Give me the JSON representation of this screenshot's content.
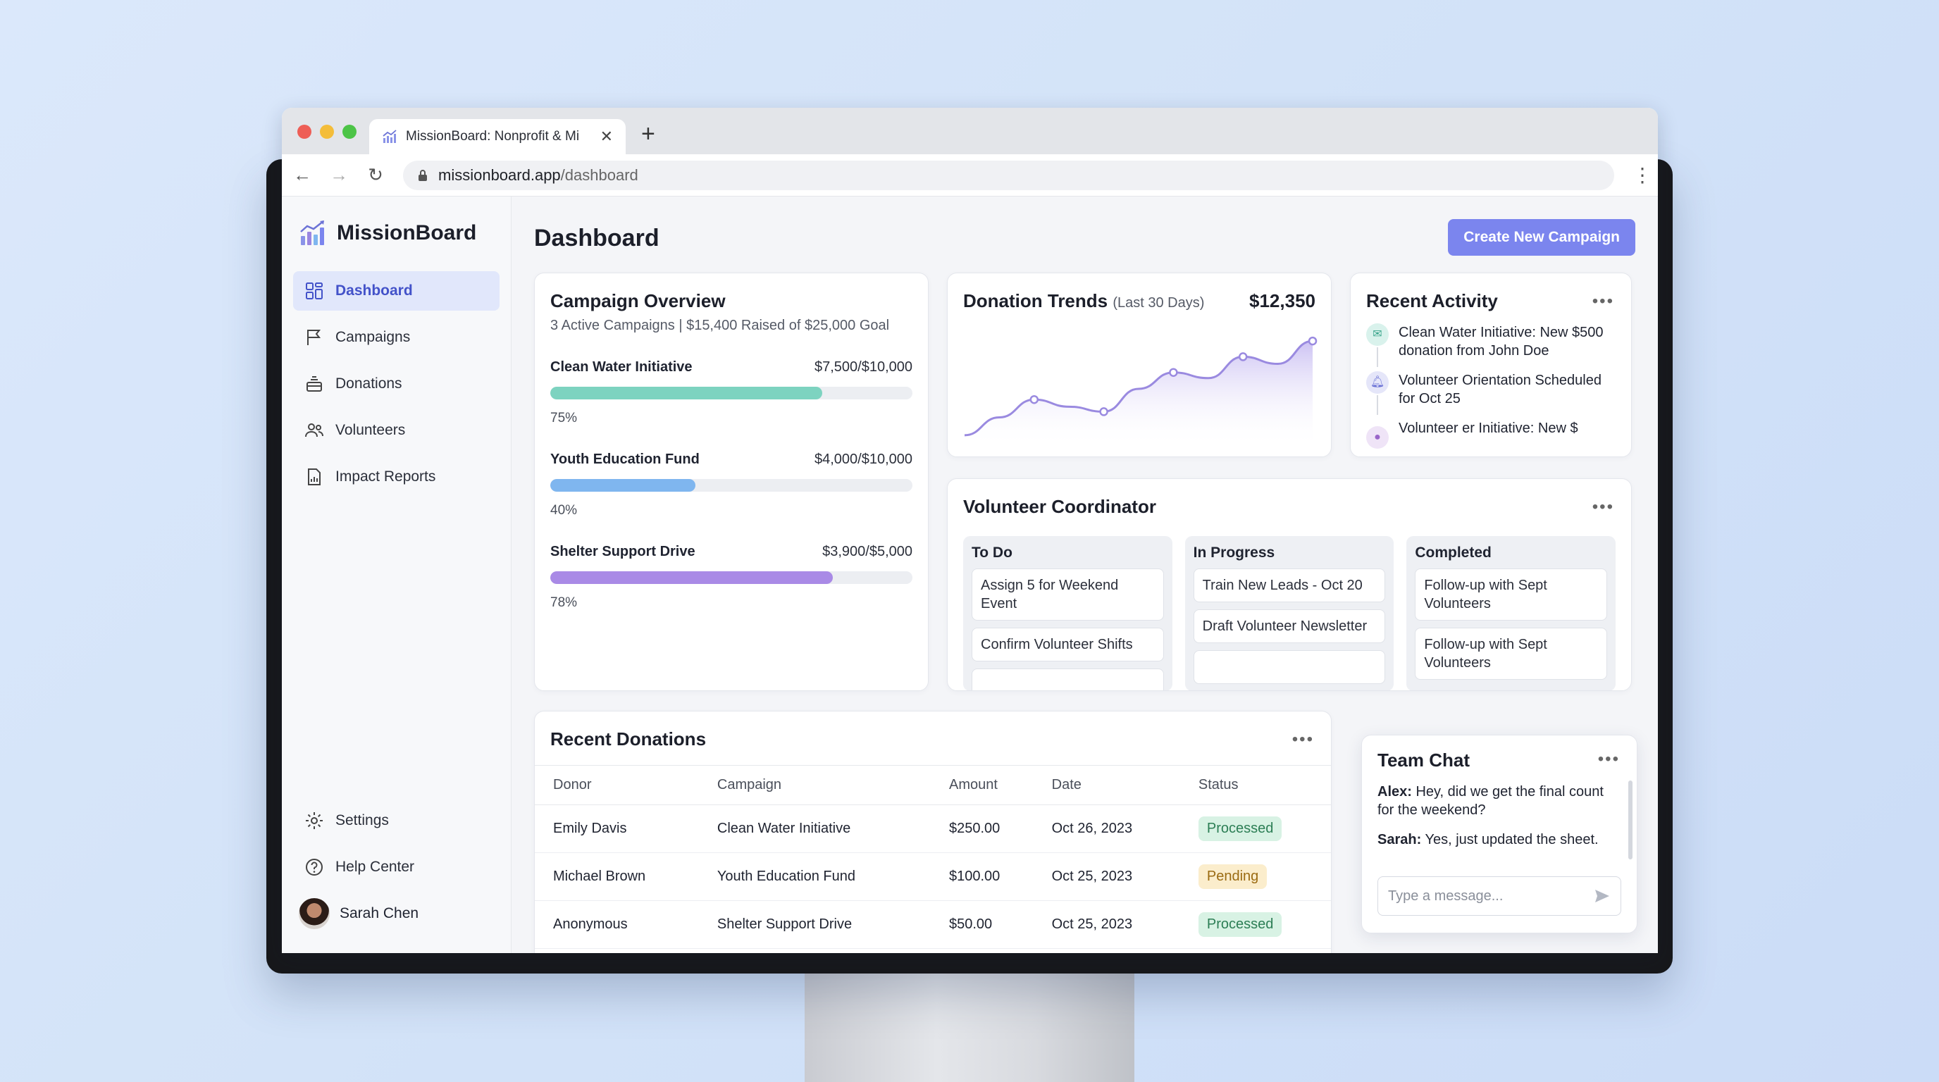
{
  "browser": {
    "tab_title": "MissionBoard: Nonprofit & Mi",
    "url_host": "missionboard.app",
    "url_path": "/dashboard"
  },
  "sidebar": {
    "brand": "MissionBoard",
    "items": [
      {
        "label": "Dashboard",
        "icon": "dashboard-icon",
        "active": true
      },
      {
        "label": "Campaigns",
        "icon": "flag-icon"
      },
      {
        "label": "Donations",
        "icon": "donation-box-icon"
      },
      {
        "label": "Volunteers",
        "icon": "users-icon"
      },
      {
        "label": "Impact Reports",
        "icon": "report-icon"
      }
    ],
    "bottom": [
      {
        "label": "Settings",
        "icon": "gear-icon"
      },
      {
        "label": "Help Center",
        "icon": "help-icon"
      }
    ],
    "user": "Sarah Chen"
  },
  "header": {
    "title": "Dashboard",
    "cta": "Create New Campaign"
  },
  "campaign_overview": {
    "title": "Campaign Overview",
    "subtitle": "3 Active Campaigns | $15,400 Raised of $25,000 Goal",
    "campaigns": [
      {
        "name": "Clean Water Initiative",
        "amount": "$7,500/$10,000",
        "pct_label": "75%",
        "progress": 75,
        "color": "#7dd3c0"
      },
      {
        "name": "Youth Education Fund",
        "amount": "$4,000/$10,000",
        "pct_label": "40%",
        "progress": 40,
        "color": "#7fb6ef"
      },
      {
        "name": "Shelter Support Drive",
        "amount": "$3,900/$5,000",
        "pct_label": "78%",
        "progress": 78,
        "color": "#a98ae6"
      }
    ]
  },
  "donation_trends": {
    "title": "Donation Trends",
    "subtitle": "(Last 30 Days)",
    "total": "$12,350"
  },
  "chart_data": {
    "type": "area",
    "x": [
      1,
      2,
      3,
      4,
      5,
      6,
      7,
      8,
      9,
      10,
      11
    ],
    "values": [
      0.1,
      0.35,
      0.6,
      0.5,
      0.43,
      0.75,
      0.98,
      0.9,
      1.2,
      1.1,
      1.42
    ],
    "markers": [
      2,
      4,
      6,
      8,
      10
    ],
    "color": "#9a8ae0",
    "title": "Donation Trends",
    "xlabel": "",
    "ylabel": ""
  },
  "recent_activity": {
    "title": "Recent Activity",
    "items": [
      {
        "text": "Clean Water Initiative: New $500 donation from John Doe",
        "icon": "mail-icon"
      },
      {
        "text": "Volunteer Orientation Scheduled for Oct 25",
        "icon": "bell-icon"
      },
      {
        "text": "Volunteer er Initiative: New $",
        "icon": "user-icon"
      }
    ]
  },
  "volunteer_coordinator": {
    "title": "Volunteer Coordinator",
    "columns": [
      {
        "title": "To Do",
        "tasks": [
          "Assign 5 for Weekend Event",
          "Confirm Volunteer Shifts"
        ]
      },
      {
        "title": "In Progress",
        "tasks": [
          "Train New Leads - Oct 20",
          "Draft Volunteer Newsletter"
        ]
      },
      {
        "title": "Completed",
        "tasks": [
          "Follow-up with Sept Volunteers",
          "Follow-up with Sept Volunteers"
        ]
      }
    ]
  },
  "recent_donations": {
    "title": "Recent Donations",
    "headers": [
      "Donor",
      "Campaign",
      "Amount",
      "Date",
      "Status"
    ],
    "rows": [
      {
        "donor": "Emily Davis",
        "campaign": "Clean Water Initiative",
        "amount": "$250.00",
        "date": "Oct 26, 2023",
        "status": "Processed"
      },
      {
        "donor": "Michael Brown",
        "campaign": "Youth Education Fund",
        "amount": "$100.00",
        "date": "Oct 25, 2023",
        "status": "Pending"
      },
      {
        "donor": "Anonymous",
        "campaign": "Shelter Support Drive",
        "amount": "$50.00",
        "date": "Oct 25, 2023",
        "status": "Processed"
      }
    ]
  },
  "team_chat": {
    "title": "Team Chat",
    "messages": [
      {
        "author": "Alex:",
        "text": "Hey, did we get the final count for the weekend?"
      },
      {
        "author": "Sarah:",
        "text": "Yes, just updated the sheet."
      }
    ],
    "placeholder": "Type a message..."
  }
}
